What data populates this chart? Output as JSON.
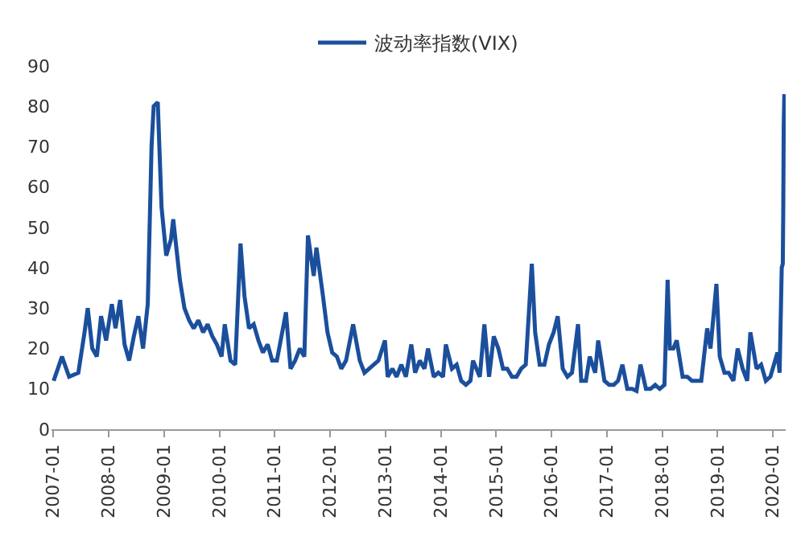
{
  "chart_data": {
    "type": "line",
    "legend": "top",
    "marker": "none",
    "line_style": "solid",
    "ylim": [
      0,
      90
    ],
    "yticks": [
      0,
      10,
      20,
      30,
      40,
      50,
      60,
      70,
      80,
      90
    ],
    "xlim": [
      "2006-12-20",
      "2020-03-25"
    ],
    "xticks": [
      {
        "value": "2007-01-01",
        "label": "2007-01"
      },
      {
        "value": "2008-01-01",
        "label": "2008-01"
      },
      {
        "value": "2009-01-01",
        "label": "2009-01"
      },
      {
        "value": "2010-01-01",
        "label": "2010-01"
      },
      {
        "value": "2011-01-01",
        "label": "2011-01"
      },
      {
        "value": "2012-01-01",
        "label": "2012-01"
      },
      {
        "value": "2013-01-01",
        "label": "2013-01"
      },
      {
        "value": "2014-01-01",
        "label": "2014-01"
      },
      {
        "value": "2015-01-01",
        "label": "2015-01"
      },
      {
        "value": "2016-01-01",
        "label": "2016-01"
      },
      {
        "value": "2017-01-01",
        "label": "2017-01"
      },
      {
        "value": "2018-01-01",
        "label": "2018-01"
      },
      {
        "value": "2019-01-01",
        "label": "2019-01"
      },
      {
        "value": "2020-01-01",
        "label": "2020-01"
      }
    ],
    "x": [
      "2007-01-03",
      "2007-02-27",
      "2007-04-15",
      "2007-06-15",
      "2007-07-26",
      "2007-08-16",
      "2007-09-15",
      "2007-10-15",
      "2007-11-12",
      "2007-12-15",
      "2008-01-22",
      "2008-02-15",
      "2008-03-17",
      "2008-04-15",
      "2008-05-15",
      "2008-06-15",
      "2008-07-15",
      "2008-08-15",
      "2008-09-15",
      "2008-10-10",
      "2008-10-24",
      "2008-11-20",
      "2008-12-15",
      "2009-01-15",
      "2009-02-15",
      "2009-03-02",
      "2009-04-15",
      "2009-05-15",
      "2009-06-15",
      "2009-07-15",
      "2009-08-15",
      "2009-09-15",
      "2009-10-15",
      "2009-11-15",
      "2009-12-15",
      "2010-01-15",
      "2010-02-05",
      "2010-03-15",
      "2010-04-15",
      "2010-05-20",
      "2010-06-15",
      "2010-07-15",
      "2010-08-15",
      "2010-09-15",
      "2010-10-15",
      "2010-11-15",
      "2010-12-15",
      "2011-01-15",
      "2011-03-16",
      "2011-04-15",
      "2011-05-15",
      "2011-06-15",
      "2011-07-15",
      "2011-08-08",
      "2011-09-15",
      "2011-10-03",
      "2011-11-15",
      "2011-12-15",
      "2012-01-15",
      "2012-02-15",
      "2012-03-15",
      "2012-04-15",
      "2012-06-01",
      "2012-07-15",
      "2012-08-15",
      "2012-09-15",
      "2012-10-15",
      "2012-11-15",
      "2012-12-28",
      "2013-01-15",
      "2013-02-15",
      "2013-03-15",
      "2013-04-15",
      "2013-05-15",
      "2013-06-20",
      "2013-07-15",
      "2013-08-15",
      "2013-09-15",
      "2013-10-08",
      "2013-11-15",
      "2013-12-15",
      "2014-01-15",
      "2014-02-03",
      "2014-03-15",
      "2014-04-15",
      "2014-05-15",
      "2014-06-15",
      "2014-07-15",
      "2014-08-01",
      "2014-09-15",
      "2014-10-15",
      "2014-11-15",
      "2014-12-16",
      "2015-01-15",
      "2015-02-15",
      "2015-03-15",
      "2015-04-15",
      "2015-05-15",
      "2015-06-15",
      "2015-07-15",
      "2015-08-24",
      "2015-09-15",
      "2015-10-15",
      "2015-11-15",
      "2015-12-15",
      "2016-01-15",
      "2016-02-11",
      "2016-03-15",
      "2016-04-15",
      "2016-05-15",
      "2016-06-24",
      "2016-07-15",
      "2016-08-15",
      "2016-09-09",
      "2016-10-15",
      "2016-11-04",
      "2016-12-15",
      "2017-01-15",
      "2017-02-15",
      "2017-03-15",
      "2017-04-13",
      "2017-05-15",
      "2017-06-15",
      "2017-07-15",
      "2017-08-10",
      "2017-09-15",
      "2017-10-15",
      "2017-11-15",
      "2017-12-15",
      "2018-01-15",
      "2018-02-05",
      "2018-02-20",
      "2018-03-15",
      "2018-04-06",
      "2018-05-15",
      "2018-06-15",
      "2018-07-15",
      "2018-08-15",
      "2018-09-15",
      "2018-10-24",
      "2018-11-15",
      "2018-12-24",
      "2019-01-15",
      "2019-02-15",
      "2019-03-15",
      "2019-04-15",
      "2019-05-13",
      "2019-06-15",
      "2019-07-15",
      "2019-08-05",
      "2019-09-15",
      "2019-10-15",
      "2019-11-15",
      "2019-12-15",
      "2020-01-31",
      "2020-02-14",
      "2020-02-28",
      "2020-03-06",
      "2020-03-09",
      "2020-03-12",
      "2020-03-16"
    ],
    "series": [
      {
        "name": "波动率指数(VIX)",
        "color": "#1b4f9c",
        "values": [
          12,
          18,
          13,
          14,
          24,
          30,
          20,
          18,
          28,
          22,
          31,
          25,
          32,
          21,
          17,
          23,
          28,
          20,
          31,
          70,
          80,
          81,
          55,
          43,
          47,
          52,
          37,
          30,
          27,
          25,
          27,
          24,
          26,
          23,
          21,
          18,
          26,
          17,
          16,
          46,
          33,
          25,
          26,
          22,
          19,
          21,
          17,
          17,
          29,
          15,
          17,
          20,
          18,
          48,
          38,
          45,
          33,
          24,
          19,
          18,
          15,
          17,
          26,
          17,
          14,
          15,
          16,
          17,
          22,
          13,
          15,
          13,
          16,
          13,
          21,
          14,
          17,
          15,
          20,
          13,
          14,
          13,
          21,
          15,
          16,
          12,
          11,
          12,
          17,
          13,
          26,
          13,
          23,
          20,
          15,
          15,
          13,
          13,
          15,
          16,
          41,
          24,
          16,
          16,
          21,
          24,
          28,
          15,
          13,
          14,
          26,
          12,
          12,
          18,
          14,
          22,
          12,
          11,
          11,
          12,
          16,
          10,
          10,
          9.5,
          16,
          10,
          10,
          11,
          10,
          11,
          37,
          20,
          20,
          22,
          13,
          13,
          12,
          12,
          12,
          25,
          20,
          36,
          18,
          14,
          14,
          12,
          20,
          15,
          12,
          24,
          15,
          16,
          12,
          13,
          19,
          14,
          40,
          41,
          54,
          75,
          83
        ]
      }
    ]
  }
}
